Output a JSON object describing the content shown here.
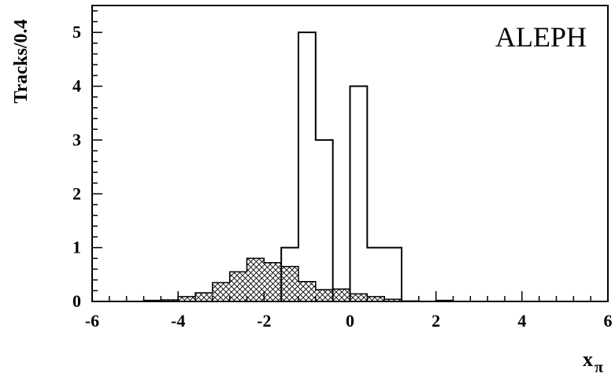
{
  "chart_data": {
    "type": "histogram",
    "experiment_label": "ALEPH",
    "xlabel": "x",
    "xlabel_subscript": "π",
    "ylabel": "Tracks/0.4",
    "xlim": [
      -6,
      6
    ],
    "ylim": [
      0,
      5.5
    ],
    "x_ticks": [
      "-6",
      "-4",
      "-2",
      "0",
      "2",
      "4",
      "6"
    ],
    "x_tick_values": [
      -6,
      -4,
      -2,
      0,
      2,
      4,
      6
    ],
    "y_ticks": [
      "0",
      "1",
      "2",
      "3",
      "4",
      "5"
    ],
    "y_tick_values": [
      0,
      1,
      2,
      3,
      4,
      5
    ],
    "grid": false,
    "bin_edges": [
      -4.8,
      -4.4,
      -4.0,
      -3.6,
      -3.2,
      -2.8,
      -2.4,
      -2.0,
      -1.6,
      -1.2,
      -0.8,
      -0.4,
      0.0,
      0.4,
      0.8,
      1.2,
      1.6,
      2.0,
      2.4,
      2.8
    ],
    "series": [
      {
        "type": "open-histogram",
        "bins": [
          {
            "x0": -1.6,
            "x1": -1.2,
            "value": 1
          },
          {
            "x0": -1.2,
            "x1": -0.8,
            "value": 5
          },
          {
            "x0": -0.8,
            "x1": -0.4,
            "value": 3
          },
          {
            "x0": -0.4,
            "x1": 0.0,
            "value": 0
          },
          {
            "x0": 0.0,
            "x1": 0.4,
            "value": 4
          },
          {
            "x0": 0.4,
            "x1": 0.8,
            "value": 1
          },
          {
            "x0": 0.8,
            "x1": 1.2,
            "value": 1
          }
        ]
      },
      {
        "type": "hatched-histogram",
        "bins": [
          {
            "x0": -4.8,
            "x1": -4.4,
            "value": 0.02
          },
          {
            "x0": -4.4,
            "x1": -4.0,
            "value": 0.03
          },
          {
            "x0": -4.0,
            "x1": -3.6,
            "value": 0.09
          },
          {
            "x0": -3.6,
            "x1": -3.2,
            "value": 0.16
          },
          {
            "x0": -3.2,
            "x1": -2.8,
            "value": 0.35
          },
          {
            "x0": -2.8,
            "x1": -2.4,
            "value": 0.55
          },
          {
            "x0": -2.4,
            "x1": -2.0,
            "value": 0.8
          },
          {
            "x0": -2.0,
            "x1": -1.6,
            "value": 0.72
          },
          {
            "x0": -1.6,
            "x1": -1.2,
            "value": 0.65
          },
          {
            "x0": -1.2,
            "x1": -0.8,
            "value": 0.37
          },
          {
            "x0": -0.8,
            "x1": -0.4,
            "value": 0.22
          },
          {
            "x0": -0.4,
            "x1": 0.0,
            "value": 0.23
          },
          {
            "x0": 0.0,
            "x1": 0.4,
            "value": 0.14
          },
          {
            "x0": 0.4,
            "x1": 0.8,
            "value": 0.09
          },
          {
            "x0": 0.8,
            "x1": 1.2,
            "value": 0.04
          },
          {
            "x0": 1.2,
            "x1": 1.6,
            "value": 0.01
          },
          {
            "x0": 1.6,
            "x1": 2.0,
            "value": 0.0
          },
          {
            "x0": 2.0,
            "x1": 2.4,
            "value": 0.02
          },
          {
            "x0": 2.4,
            "x1": 2.8,
            "value": 0.0
          }
        ]
      }
    ]
  }
}
